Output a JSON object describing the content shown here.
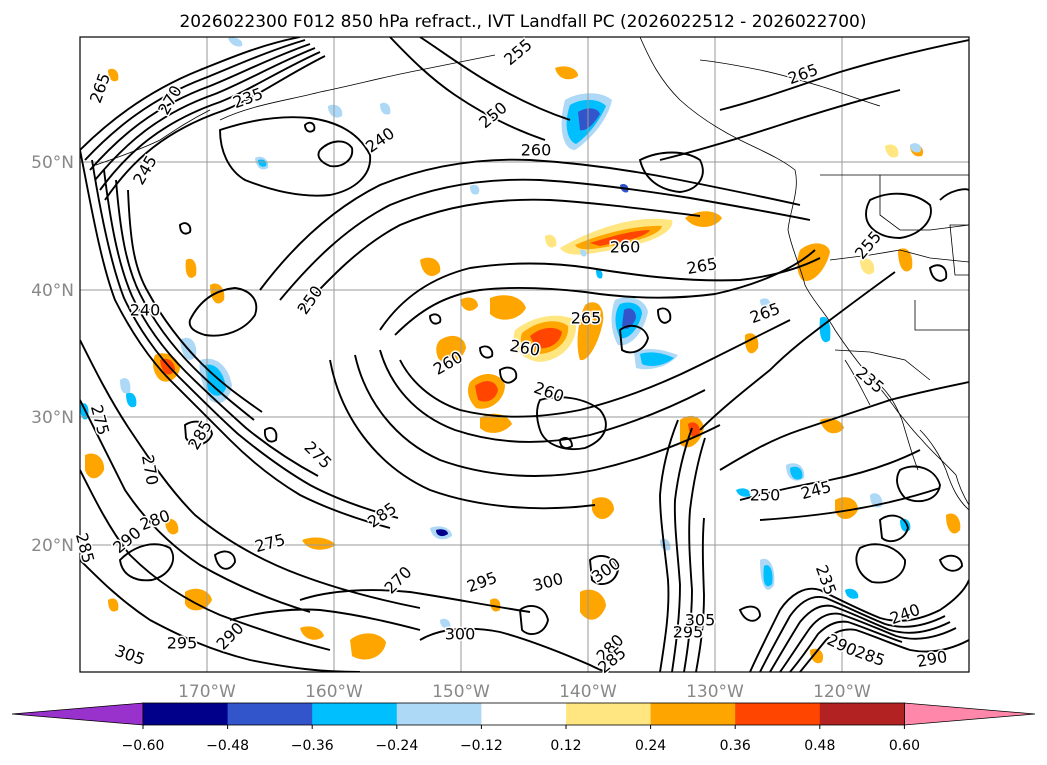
{
  "title": "2026022300 F012 850 hPa refract., IVT Landfall PC (2026022512 - 2026022700)",
  "map": {
    "lat_labels": [
      "50°N",
      "40°N",
      "30°N",
      "20°N"
    ],
    "lon_labels": [
      "170°W",
      "160°W",
      "150°W",
      "140°W",
      "130°W",
      "120°W"
    ]
  },
  "contour_labels": [
    "265",
    "270",
    "235",
    "255",
    "250",
    "240",
    "260",
    "265",
    "245",
    "240",
    "260",
    "265",
    "250",
    "260",
    "265",
    "260",
    "260",
    "265",
    "255",
    "235",
    "275",
    "285",
    "275",
    "270",
    "280",
    "290",
    "285",
    "275",
    "285",
    "270",
    "295",
    "300",
    "300",
    "290",
    "305",
    "295",
    "300",
    "295",
    "305",
    "280",
    "285",
    "250",
    "245",
    "235",
    "240",
    "290",
    "285",
    "290"
  ],
  "colorbar": {
    "tick_labels": [
      "−0.60",
      "−0.48",
      "−0.36",
      "−0.24",
      "−0.12",
      "0.12",
      "0.24",
      "0.36",
      "0.48",
      "0.60"
    ],
    "colors": [
      "#9932cc",
      "#00008b",
      "#3355cc",
      "#00bfff",
      "#add8f6",
      "#ffffff",
      "#ffe680",
      "#ffa500",
      "#ff4500",
      "#b22222",
      "#ff88aa"
    ]
  },
  "chart_data": {
    "type": "heatmap",
    "title": "2026022300 F012 850 hPa refract., IVT Landfall PC (2026022512 - 2026022700)",
    "projection": "Plate Carree",
    "extent": {
      "lon": [
        -180,
        -110
      ],
      "lat": [
        10,
        60
      ]
    },
    "contour_field": "850 hPa refractivity",
    "contour_levels": [
      235,
      240,
      245,
      250,
      255,
      260,
      265,
      270,
      275,
      280,
      285,
      290,
      295,
      300,
      305
    ],
    "shading_field": "IVT Landfall PC",
    "shading_levels": [
      -0.6,
      -0.48,
      -0.36,
      -0.24,
      -0.12,
      0.12,
      0.24,
      0.36,
      0.48,
      0.6
    ],
    "colorbar_extend": "both",
    "grid": true
  }
}
